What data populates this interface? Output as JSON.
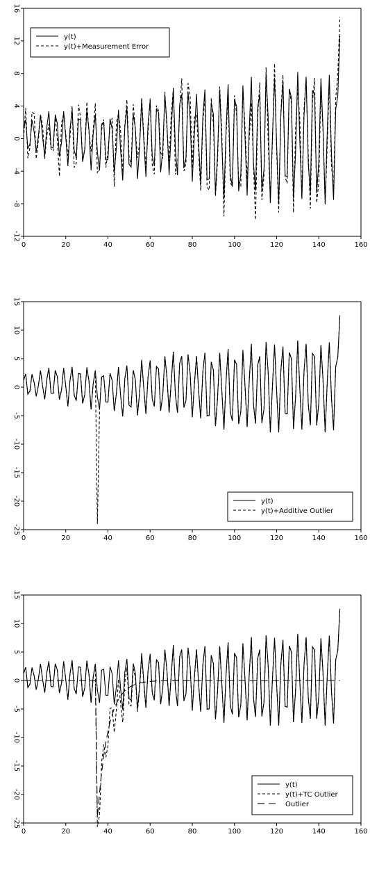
{
  "chart_data": [
    {
      "type": "line",
      "xlim": [
        0,
        160
      ],
      "ylim": [
        -12,
        16
      ],
      "xticks": [
        0,
        20,
        40,
        60,
        80,
        100,
        120,
        140,
        160
      ],
      "yticks": [
        -12,
        -8,
        -4,
        0,
        4,
        8,
        12,
        16
      ],
      "legend_position": "top-left",
      "grid": false,
      "series": [
        {
          "name": "y(t)",
          "style": "solid",
          "kind": "base"
        },
        {
          "name": "y(t)+Measurement Error",
          "style": "dashed",
          "kind": "measurement_error"
        }
      ]
    },
    {
      "type": "line",
      "xlim": [
        0,
        160
      ],
      "ylim": [
        -25,
        15
      ],
      "xticks": [
        0,
        20,
        40,
        60,
        80,
        100,
        120,
        140,
        160
      ],
      "yticks": [
        -25,
        -20,
        -15,
        -10,
        -5,
        0,
        5,
        10,
        15
      ],
      "legend_position": "bottom-right",
      "grid": false,
      "series": [
        {
          "name": "y(t)",
          "style": "solid",
          "kind": "base"
        },
        {
          "name": "y(t)+Additive Outlier",
          "style": "dashed",
          "kind": "additive_outlier",
          "outlier_at": 35,
          "outlier_value": -24
        }
      ]
    },
    {
      "type": "line",
      "xlim": [
        0,
        160
      ],
      "ylim": [
        -25,
        15
      ],
      "xticks": [
        0,
        20,
        40,
        60,
        80,
        100,
        120,
        140,
        160
      ],
      "yticks": [
        -25,
        -20,
        -15,
        -10,
        -5,
        0,
        5,
        10,
        15
      ],
      "legend_position": "bottom-right",
      "grid": false,
      "series": [
        {
          "name": "y(t)",
          "style": "solid",
          "kind": "base"
        },
        {
          "name": "y(t)+TC Outlier",
          "style": "dashed",
          "kind": "tc_outlier",
          "outlier_at": 35,
          "outlier_value": -24,
          "decay": 0.82
        },
        {
          "name": "Outlier",
          "style": "longdash",
          "kind": "outlier",
          "outlier_at": 35,
          "outlier_value": -24,
          "decay": 0.82
        }
      ]
    }
  ]
}
